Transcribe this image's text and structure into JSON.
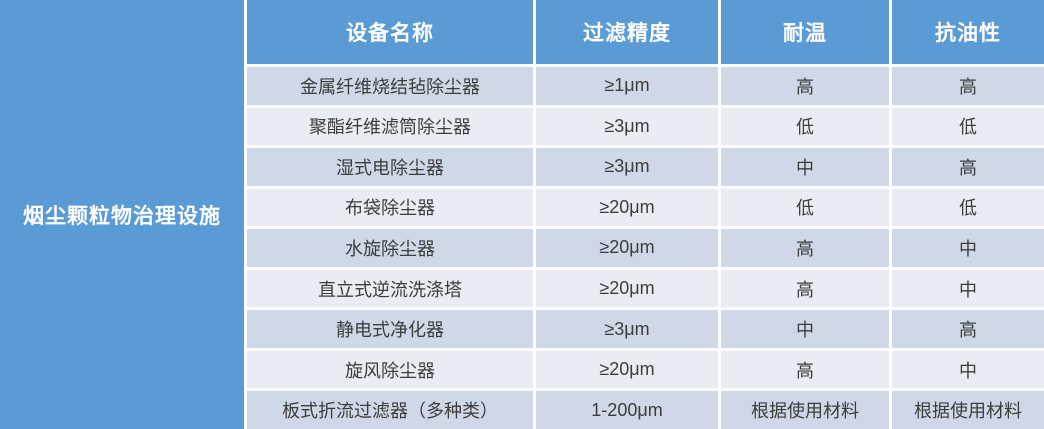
{
  "chart_data": {
    "type": "table",
    "title": "",
    "row_header": "烟尘颗粒物治理设施",
    "columns": [
      "设备名称",
      "过滤精度",
      "耐温",
      "抗油性"
    ],
    "rows": [
      [
        "金属纤维烧结毡除尘器",
        "≥1μm",
        "高",
        "高"
      ],
      [
        "聚酯纤维滤筒除尘器",
        "≥3μm",
        "低",
        "低"
      ],
      [
        "湿式电除尘器",
        "≥3μm",
        "中",
        "高"
      ],
      [
        "布袋除尘器",
        "≥20μm",
        "低",
        "低"
      ],
      [
        "水旋除尘器",
        "≥20μm",
        "高",
        "中"
      ],
      [
        "直立式逆流洗涤塔",
        "≥20μm",
        "高",
        "中"
      ],
      [
        "静电式净化器",
        "≥3μm",
        "中",
        "高"
      ],
      [
        "旋风除尘器",
        "≥20μm",
        "高",
        "中"
      ],
      [
        "板式折流过滤器（多种类）",
        "1-200μm",
        "根据使用材料",
        "根据使用材料"
      ]
    ],
    "layout": {
      "banded_rows": true,
      "grid_lines": "white",
      "header_color": "#5b9bd5",
      "band_dark": "#cfd8e6",
      "band_light": "#e9ecf3",
      "header_text_color": "#ffffff",
      "body_text_color": "#3d3d3d"
    }
  }
}
